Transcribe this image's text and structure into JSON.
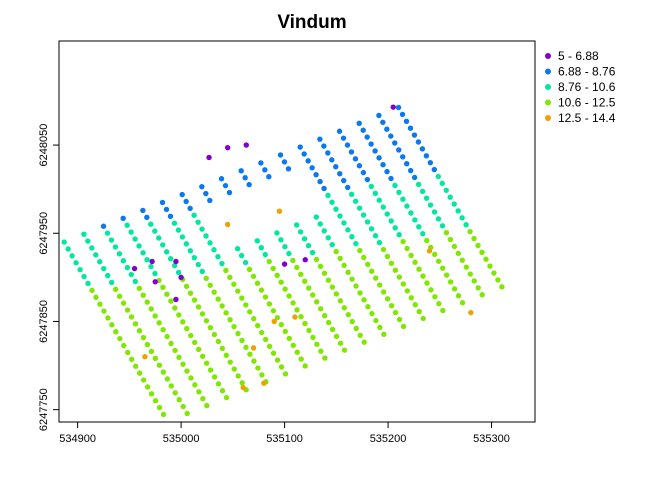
{
  "chart_data": {
    "type": "scatter",
    "title": "Vindum",
    "xlabel": "",
    "ylabel": "",
    "xlim": [
      534882,
      535342
    ],
    "ylim": [
      6247736,
      6248168
    ],
    "x_ticks": [
      534900,
      535000,
      535100,
      535200,
      535300
    ],
    "y_ticks": [
      6247750,
      6247850,
      6247950,
      6248050
    ],
    "x_tick_labels": [
      "534900",
      "535000",
      "535100",
      "535200",
      "535300"
    ],
    "y_tick_labels": [
      "6247750",
      "6247850",
      "6247950",
      "6248050"
    ],
    "legend_position": "top-right, outside plot",
    "grid": false,
    "classes": [
      {
        "label": "5 - 6.88",
        "color": "#8000d0"
      },
      {
        "label": "6.88 - 8.76",
        "color": "#0a78f0"
      },
      {
        "label": "8.76 - 10.6",
        "color": "#00e8a0"
      },
      {
        "label": "10.6 - 12.5",
        "color": "#80e800"
      },
      {
        "label": "12.5 - 14.4",
        "color": "#f0a000"
      }
    ],
    "grid_sampling": {
      "origin": [
        534887,
        6247940
      ],
      "step_along_row": [
        19.8,
        -3.3
      ],
      "step_along_col": [
        4.0,
        -10.3
      ],
      "rows": 27,
      "cols": 18,
      "hole_rows": [
        3,
        8
      ],
      "hole_cols": [
        7,
        11
      ]
    },
    "special_points": [
      {
        "x": 535027,
        "y": 6248036,
        "class": 0
      },
      {
        "x": 535045,
        "y": 6248047,
        "class": 0
      },
      {
        "x": 535063,
        "y": 6248050,
        "class": 0
      },
      {
        "x": 535205,
        "y": 6248093,
        "class": 0
      },
      {
        "x": 534972,
        "y": 6247918,
        "class": 0
      },
      {
        "x": 534995,
        "y": 6247918,
        "class": 0
      },
      {
        "x": 534975,
        "y": 6247895,
        "class": 0
      },
      {
        "x": 535000,
        "y": 6247900,
        "class": 0
      },
      {
        "x": 534955,
        "y": 6247910,
        "class": 0
      },
      {
        "x": 534995,
        "y": 6247875,
        "class": 0
      },
      {
        "x": 535100,
        "y": 6247915,
        "class": 0
      },
      {
        "x": 535120,
        "y": 6247920,
        "class": 0
      },
      {
        "x": 535045,
        "y": 6247960,
        "class": 4
      },
      {
        "x": 535095,
        "y": 6247975,
        "class": 4
      },
      {
        "x": 535240,
        "y": 6247930,
        "class": 4
      },
      {
        "x": 535110,
        "y": 6247855,
        "class": 4
      },
      {
        "x": 535090,
        "y": 6247850,
        "class": 4
      },
      {
        "x": 535280,
        "y": 6247860,
        "class": 4
      },
      {
        "x": 534965,
        "y": 6247810,
        "class": 4
      },
      {
        "x": 535070,
        "y": 6247820,
        "class": 4
      },
      {
        "x": 535060,
        "y": 6247775,
        "class": 4
      },
      {
        "x": 535080,
        "y": 6247780,
        "class": 4
      }
    ]
  }
}
